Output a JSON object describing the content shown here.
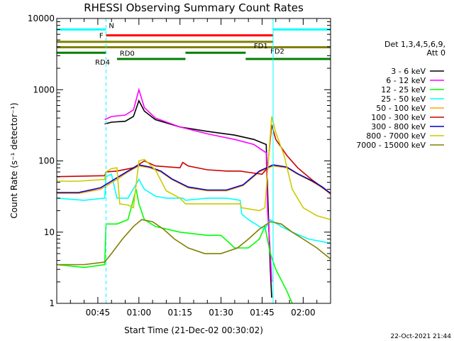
{
  "chart_data": {
    "type": "line",
    "title": "RHESSI Observing Summary Count Rates",
    "xlabel": "Start Time (21-Dec-02 00:30:02)",
    "ylabel": "Count Rate (s⁻¹ detector⁻¹)",
    "y_scale": "log",
    "ylim": [
      1,
      10000
    ],
    "xlim_minutes": [
      0,
      100
    ],
    "x_ticks": [
      {
        "label": "00:45",
        "minute": 15
      },
      {
        "label": "01:00",
        "minute": 30
      },
      {
        "label": "01:15",
        "minute": 45
      },
      {
        "label": "01:30",
        "minute": 60
      },
      {
        "label": "01:45",
        "minute": 75
      },
      {
        "label": "02:00",
        "minute": 90
      }
    ],
    "y_ticks": [
      {
        "label": "1",
        "value": 1
      },
      {
        "label": "10",
        "value": 10
      },
      {
        "label": "100",
        "value": 100
      },
      {
        "label": "1000",
        "value": 1000
      },
      {
        "label": "10000",
        "value": 10000
      }
    ],
    "legend_header": [
      "Det 1,3,4,5,6,9,",
      "Att 0"
    ],
    "series": [
      {
        "name": "3 - 6 keV",
        "color": "#000000",
        "points": [
          [
            0,
            null
          ],
          [
            17.5,
            null
          ],
          [
            17.5,
            330
          ],
          [
            20,
            350
          ],
          [
            25,
            360
          ],
          [
            28,
            420
          ],
          [
            30,
            700
          ],
          [
            32,
            500
          ],
          [
            36,
            380
          ],
          [
            45,
            300
          ],
          [
            55,
            260
          ],
          [
            65,
            230
          ],
          [
            72,
            200
          ],
          [
            76.5,
            170
          ],
          [
            77,
            40
          ],
          [
            77.5,
            10
          ],
          [
            78,
            3
          ],
          [
            78.5,
            1.2
          ],
          [
            79,
            null
          ]
        ]
      },
      {
        "name": "6 - 12 keV",
        "color": "#ff00ff",
        "points": [
          [
            0,
            null
          ],
          [
            17.5,
            null
          ],
          [
            17.5,
            380
          ],
          [
            20,
            420
          ],
          [
            25,
            440
          ],
          [
            28,
            520
          ],
          [
            30,
            1000
          ],
          [
            32,
            560
          ],
          [
            36,
            400
          ],
          [
            45,
            300
          ],
          [
            55,
            240
          ],
          [
            65,
            200
          ],
          [
            72,
            170
          ],
          [
            76.5,
            130
          ],
          [
            77,
            20
          ],
          [
            78,
            5
          ],
          [
            78.5,
            2
          ],
          [
            79,
            null
          ]
        ]
      },
      {
        "name": "12 - 25 keV",
        "color": "#00ff00",
        "points": [
          [
            0,
            3.5
          ],
          [
            10,
            3.2
          ],
          [
            17.5,
            3.5
          ],
          [
            18,
            13
          ],
          [
            22,
            13
          ],
          [
            26,
            15
          ],
          [
            29,
            40
          ],
          [
            30,
            25
          ],
          [
            32,
            15
          ],
          [
            36,
            12
          ],
          [
            45,
            10
          ],
          [
            55,
            9
          ],
          [
            60,
            9
          ],
          [
            65,
            6
          ],
          [
            70,
            6
          ],
          [
            74,
            8
          ],
          [
            76,
            12
          ],
          [
            78,
            5
          ],
          [
            80,
            3
          ],
          [
            84,
            1.5
          ],
          [
            86,
            1
          ]
        ]
      },
      {
        "name": "25 - 50 keV",
        "color": "#00ffff",
        "points": [
          [
            0,
            30
          ],
          [
            10,
            28
          ],
          [
            17.5,
            30
          ],
          [
            18,
            60
          ],
          [
            20,
            65
          ],
          [
            22,
            30
          ],
          [
            26,
            30
          ],
          [
            30,
            55
          ],
          [
            32,
            40
          ],
          [
            36,
            32
          ],
          [
            40,
            30
          ],
          [
            44,
            30
          ],
          [
            46,
            30
          ],
          [
            47,
            28
          ],
          [
            55,
            30
          ],
          [
            62,
            30
          ],
          [
            67,
            28
          ],
          [
            67.5,
            18
          ],
          [
            70,
            15
          ],
          [
            74,
            12
          ],
          [
            76,
            11
          ],
          [
            78,
            15
          ],
          [
            82,
            12
          ],
          [
            86,
            10
          ],
          [
            92,
            8
          ],
          [
            100,
            7
          ]
        ]
      },
      {
        "name": "50 - 100 keV",
        "color": "#ffa500",
        "points": [
          [
            0,
            35
          ],
          [
            8,
            35
          ],
          [
            16,
            40
          ],
          [
            22,
            55
          ],
          [
            26,
            70
          ],
          [
            30,
            85
          ],
          [
            34,
            80
          ],
          [
            38,
            70
          ],
          [
            42,
            55
          ],
          [
            48,
            42
          ],
          [
            55,
            38
          ],
          [
            62,
            38
          ],
          [
            68,
            45
          ],
          [
            74,
            70
          ],
          [
            79,
            85
          ],
          [
            84,
            80
          ],
          [
            88,
            65
          ],
          [
            93,
            52
          ],
          [
            97,
            42
          ],
          [
            100,
            34
          ]
        ]
      },
      {
        "name": "100 - 300 keV",
        "color": "#cc0000",
        "points": [
          [
            0,
            60
          ],
          [
            17.5,
            62
          ],
          [
            18,
            70
          ],
          [
            22,
            72
          ],
          [
            28,
            80
          ],
          [
            32,
            100
          ],
          [
            36,
            85
          ],
          [
            45,
            80
          ],
          [
            46,
            95
          ],
          [
            48,
            85
          ],
          [
            55,
            75
          ],
          [
            62,
            72
          ],
          [
            67,
            72
          ],
          [
            69,
            70
          ],
          [
            75,
            65
          ],
          [
            77,
            80
          ],
          [
            78.5,
            320
          ],
          [
            80,
            200
          ],
          [
            84,
            120
          ],
          [
            88,
            80
          ],
          [
            93,
            55
          ],
          [
            100,
            35
          ]
        ]
      },
      {
        "name": "300 - 800 keV",
        "color": "#0000cc",
        "points": [
          [
            0,
            36
          ],
          [
            8,
            36
          ],
          [
            16,
            42
          ],
          [
            22,
            58
          ],
          [
            26,
            72
          ],
          [
            30,
            88
          ],
          [
            34,
            82
          ],
          [
            38,
            72
          ],
          [
            42,
            56
          ],
          [
            48,
            43
          ],
          [
            55,
            39
          ],
          [
            62,
            39
          ],
          [
            68,
            46
          ],
          [
            74,
            72
          ],
          [
            79,
            88
          ],
          [
            84,
            82
          ],
          [
            88,
            66
          ],
          [
            93,
            53
          ],
          [
            97,
            43
          ],
          [
            100,
            35
          ]
        ]
      },
      {
        "name": "800 - 7000 keV",
        "color": "#cccc00",
        "points": [
          [
            0,
            52
          ],
          [
            8,
            52
          ],
          [
            17.5,
            55
          ],
          [
            18,
            70
          ],
          [
            20,
            78
          ],
          [
            22,
            80
          ],
          [
            23,
            25
          ],
          [
            26,
            24
          ],
          [
            28,
            22
          ],
          [
            30,
            100
          ],
          [
            32,
            105
          ],
          [
            36,
            75
          ],
          [
            40,
            38
          ],
          [
            45,
            30
          ],
          [
            47,
            25
          ],
          [
            55,
            25
          ],
          [
            62,
            25
          ],
          [
            67,
            25
          ],
          [
            67.5,
            22
          ],
          [
            74,
            20
          ],
          [
            76,
            22
          ],
          [
            78.5,
            420
          ],
          [
            80,
            250
          ],
          [
            83,
            120
          ],
          [
            86,
            40
          ],
          [
            90,
            22
          ],
          [
            95,
            17
          ],
          [
            100,
            15
          ]
        ]
      },
      {
        "name": "7000 - 15000 keV",
        "color": "#808000",
        "points": [
          [
            0,
            3.5
          ],
          [
            10,
            3.5
          ],
          [
            17.5,
            3.8
          ],
          [
            20,
            5
          ],
          [
            24,
            8
          ],
          [
            28,
            12
          ],
          [
            31,
            15
          ],
          [
            35,
            14
          ],
          [
            39,
            11
          ],
          [
            43,
            8
          ],
          [
            48,
            6
          ],
          [
            54,
            5
          ],
          [
            60,
            5
          ],
          [
            66,
            6
          ],
          [
            70,
            8
          ],
          [
            74,
            11
          ],
          [
            78,
            14
          ],
          [
            82,
            13
          ],
          [
            86,
            10
          ],
          [
            90,
            8
          ],
          [
            95,
            6
          ],
          [
            100,
            4.2
          ]
        ]
      }
    ],
    "state_bars": [
      {
        "label": "N",
        "color": "#00ffff",
        "segments": [
          [
            0,
            18
          ],
          [
            79,
            100
          ]
        ],
        "level": 7000
      },
      {
        "label": "F",
        "color": "#ff0000",
        "segments": [
          [
            18,
            79
          ]
        ],
        "level": 5800
      },
      {
        "label": "FD1",
        "color": "#808000",
        "segments": [
          [
            0,
            79
          ]
        ],
        "level": 4700
      },
      {
        "label": "FD2",
        "color": "#808000",
        "segments": [
          [
            0,
            100
          ]
        ],
        "level": 3950
      },
      {
        "label": "RD0",
        "color": "#008000",
        "segments": [
          [
            0,
            18
          ],
          [
            47,
            69
          ]
        ],
        "level": 3300
      },
      {
        "label": "RD4",
        "color": "#008000",
        "segments": [
          [
            22,
            47
          ],
          [
            69,
            100
          ]
        ],
        "level": 2700
      }
    ],
    "saa_lines_minutes": [
      0,
      18,
      79,
      100
    ],
    "saa_dashed_minutes": [
      18,
      100
    ]
  },
  "footer": {
    "timestamp": "22-Oct-2021 21:44"
  }
}
